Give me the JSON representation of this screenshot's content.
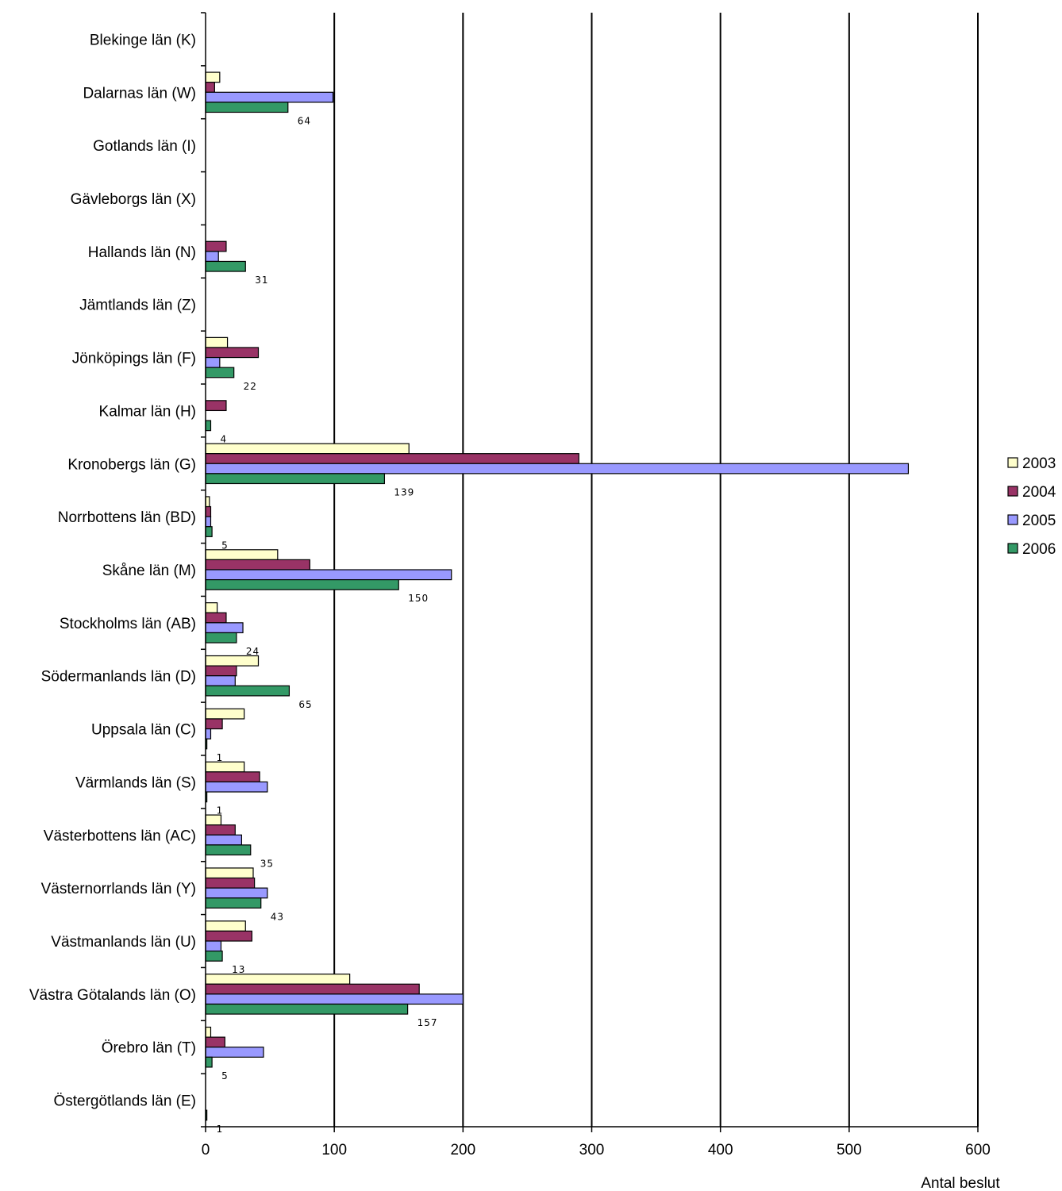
{
  "chart_data": {
    "type": "bar",
    "orientation": "horizontal",
    "xlabel": "Antal beslut",
    "xlim": [
      0,
      600
    ],
    "xticks": [
      "0",
      "100",
      "200",
      "300",
      "400",
      "500",
      "600"
    ],
    "grid": true,
    "legend_position": "right",
    "categories": [
      "Blekinge län (K)",
      "Dalarnas län (W)",
      "Gotlands län (I)",
      "Gävleborgs län (X)",
      "Hallands län (N)",
      "Jämtlands län (Z)",
      "Jönköpings län (F)",
      "Kalmar län (H)",
      "Kronobergs län (G)",
      "Norrbottens län (BD)",
      "Skåne län (M)",
      "Stockholms län (AB)",
      "Södermanlands län (D)",
      "Uppsala län (C)",
      "Värmlands län (S)",
      "Västerbottens län (AC)",
      "Västernorrlands län (Y)",
      "Västmanlands län (U)",
      "Västra Götalands län (O)",
      "Örebro län (T)",
      "Östergötlands län (E)"
    ],
    "series": [
      {
        "name": "2003",
        "color": "#ffffcc",
        "values": [
          0,
          11,
          0,
          0,
          0,
          0,
          17,
          0,
          158,
          3,
          56,
          9,
          41,
          30,
          30,
          12,
          37,
          31,
          112,
          4,
          0
        ]
      },
      {
        "name": "2004",
        "color": "#993366",
        "values": [
          0,
          7,
          0,
          0,
          16,
          0,
          41,
          16,
          290,
          4,
          81,
          16,
          24,
          13,
          42,
          23,
          38,
          36,
          166,
          15,
          0
        ]
      },
      {
        "name": "2005",
        "color": "#9999ff",
        "values": [
          0,
          99,
          0,
          0,
          10,
          0,
          11,
          0,
          546,
          4,
          191,
          29,
          23,
          4,
          48,
          28,
          48,
          12,
          200,
          45,
          0
        ]
      },
      {
        "name": "2006",
        "color": "#339966",
        "values": [
          0,
          64,
          0,
          0,
          31,
          0,
          22,
          4,
          139,
          5,
          150,
          24,
          65,
          1,
          1,
          35,
          43,
          13,
          157,
          5,
          1
        ]
      }
    ],
    "data_labels_series": "2006",
    "data_labels": [
      "",
      "64",
      "",
      "",
      "31",
      "",
      "22",
      "4",
      "139",
      "5",
      "150",
      "24",
      "65",
      "1",
      "1",
      "35",
      "43",
      "13",
      "157",
      "5",
      "1"
    ]
  }
}
